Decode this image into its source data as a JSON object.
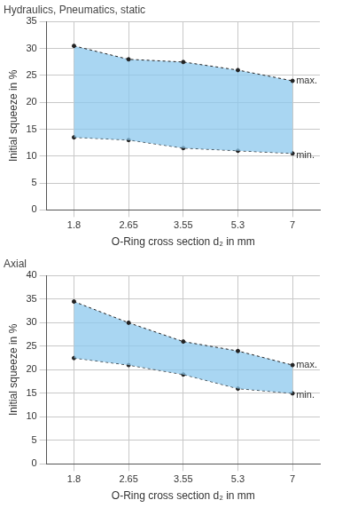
{
  "chart_data": [
    {
      "type": "line",
      "title": "Hydraulics, Pneumatics, static",
      "x_label": "O-Ring cross section d₂ in mm",
      "y_label": "Initial squeeze in %",
      "categories": [
        "1.8",
        "2.65",
        "3.55",
        "5.3",
        "7"
      ],
      "series": [
        {
          "name": "max.",
          "color": "#222222",
          "marker": "circle",
          "line_style": "dashed",
          "values": [
            30.5,
            28,
            27.5,
            26,
            24
          ]
        },
        {
          "name": "min.",
          "color": "#222222",
          "marker": "circle",
          "line_style": "dashed",
          "values": [
            13.5,
            13,
            11.5,
            11,
            10.5
          ]
        }
      ],
      "ylim": [
        0,
        35
      ],
      "yticks": [
        0,
        5,
        10,
        15,
        20,
        25,
        30,
        35
      ],
      "grid": true
    },
    {
      "type": "line",
      "title": "Axial",
      "x_label": "O-Ring cross section d₂ in mm",
      "y_label": "Initial squeeze in %",
      "categories": [
        "1.8",
        "2.65",
        "3.55",
        "5.3",
        "7"
      ],
      "series": [
        {
          "name": "max.",
          "color": "#222222",
          "marker": "circle",
          "line_style": "dashed",
          "values": [
            34.5,
            30,
            26,
            24,
            21
          ]
        },
        {
          "name": "min.",
          "color": "#222222",
          "marker": "circle",
          "line_style": "dashed",
          "values": [
            22.5,
            21,
            19,
            16,
            15
          ]
        }
      ],
      "ylim": [
        0,
        40
      ],
      "yticks": [
        0,
        5,
        10,
        15,
        20,
        25,
        30,
        35,
        40
      ],
      "grid": true
    }
  ]
}
